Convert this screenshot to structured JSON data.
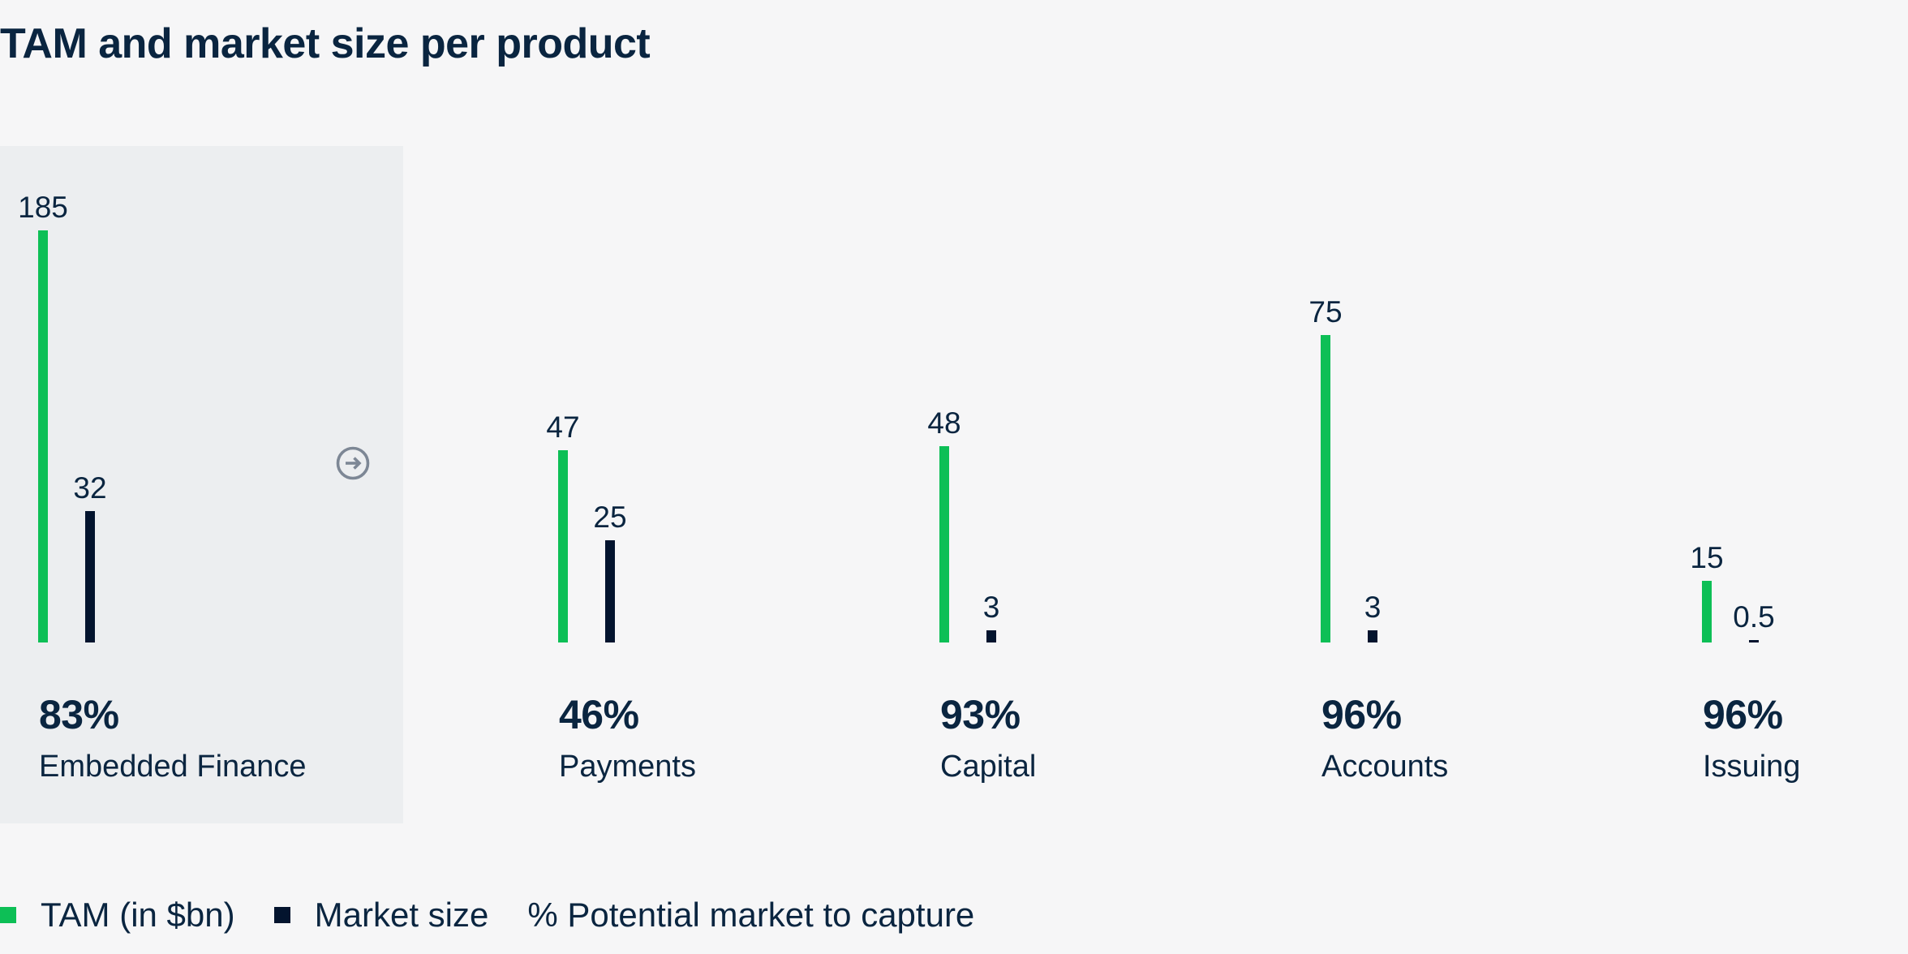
{
  "header": {
    "title": "TAM and market size per product"
  },
  "chart_data": {
    "type": "bar",
    "title": "TAM and market size per product",
    "categories": [
      "Embedded Finance",
      "Payments",
      "Capital",
      "Accounts",
      "Issuing"
    ],
    "series": [
      {
        "name": "TAM (in $bn)",
        "color": "#0DBF56",
        "values": [
          185,
          47,
          48,
          75,
          15
        ]
      },
      {
        "name": "Market size",
        "color": "#03142E",
        "values": [
          32,
          25,
          3,
          3,
          0.5
        ]
      }
    ],
    "value_labels": [
      [
        "185",
        "32"
      ],
      [
        "47",
        "25"
      ],
      [
        "48",
        "3"
      ],
      [
        "75",
        "3"
      ],
      [
        "15",
        "0.5"
      ]
    ],
    "capture_pct_labels": [
      "83%",
      "46%",
      "93%",
      "96%",
      "96%"
    ],
    "legend": [
      "TAM (in $bn)",
      "Market size",
      "% Potential market to capture"
    ],
    "legend_position": "bottom",
    "grid": false,
    "axes_shown": false,
    "highlighted_category": "Embedded Finance"
  },
  "icons": {
    "arrow_right_circle": "arrow-right-in-circle"
  },
  "colors": {
    "tam_green": "#0DBF56",
    "market_navy": "#03142E",
    "text_navy": "#0A2540",
    "panel_gray": "#ECEEF0",
    "background": "#F6F6F7",
    "arrow_gray": "#7D8795"
  }
}
